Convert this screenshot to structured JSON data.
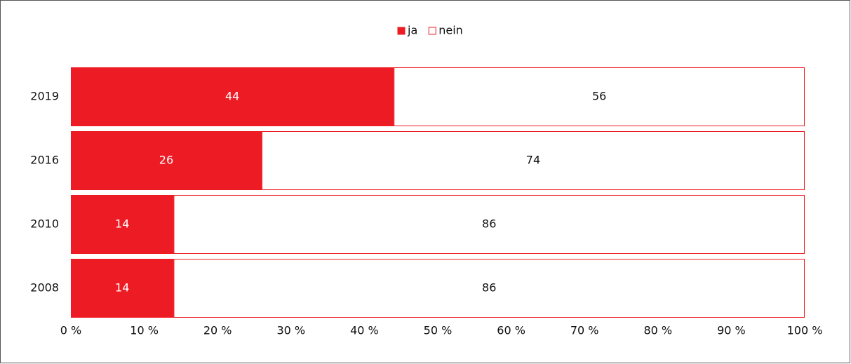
{
  "chart_data": {
    "type": "bar",
    "orientation": "horizontal",
    "stacked": true,
    "categories": [
      "2019",
      "2016",
      "2010",
      "2008"
    ],
    "series": [
      {
        "name": "ja",
        "color": "#ed1c24",
        "values": [
          44,
          26,
          14,
          14
        ]
      },
      {
        "name": "nein",
        "color": "#ffffff",
        "values": [
          56,
          74,
          86,
          86
        ]
      }
    ],
    "xlim": [
      0,
      100
    ],
    "xticks": [
      {
        "value": 0,
        "label": "0 %"
      },
      {
        "value": 10,
        "label": "10 %"
      },
      {
        "value": 20,
        "label": "20 %"
      },
      {
        "value": 30,
        "label": "30 %"
      },
      {
        "value": 40,
        "label": "40 %"
      },
      {
        "value": 50,
        "label": "50 %"
      },
      {
        "value": 60,
        "label": "60 %"
      },
      {
        "value": 70,
        "label": "70 %"
      },
      {
        "value": 80,
        "label": "80 %"
      },
      {
        "value": 90,
        "label": "90 %"
      },
      {
        "value": 100,
        "label": "100 %"
      }
    ],
    "legend": "top"
  }
}
